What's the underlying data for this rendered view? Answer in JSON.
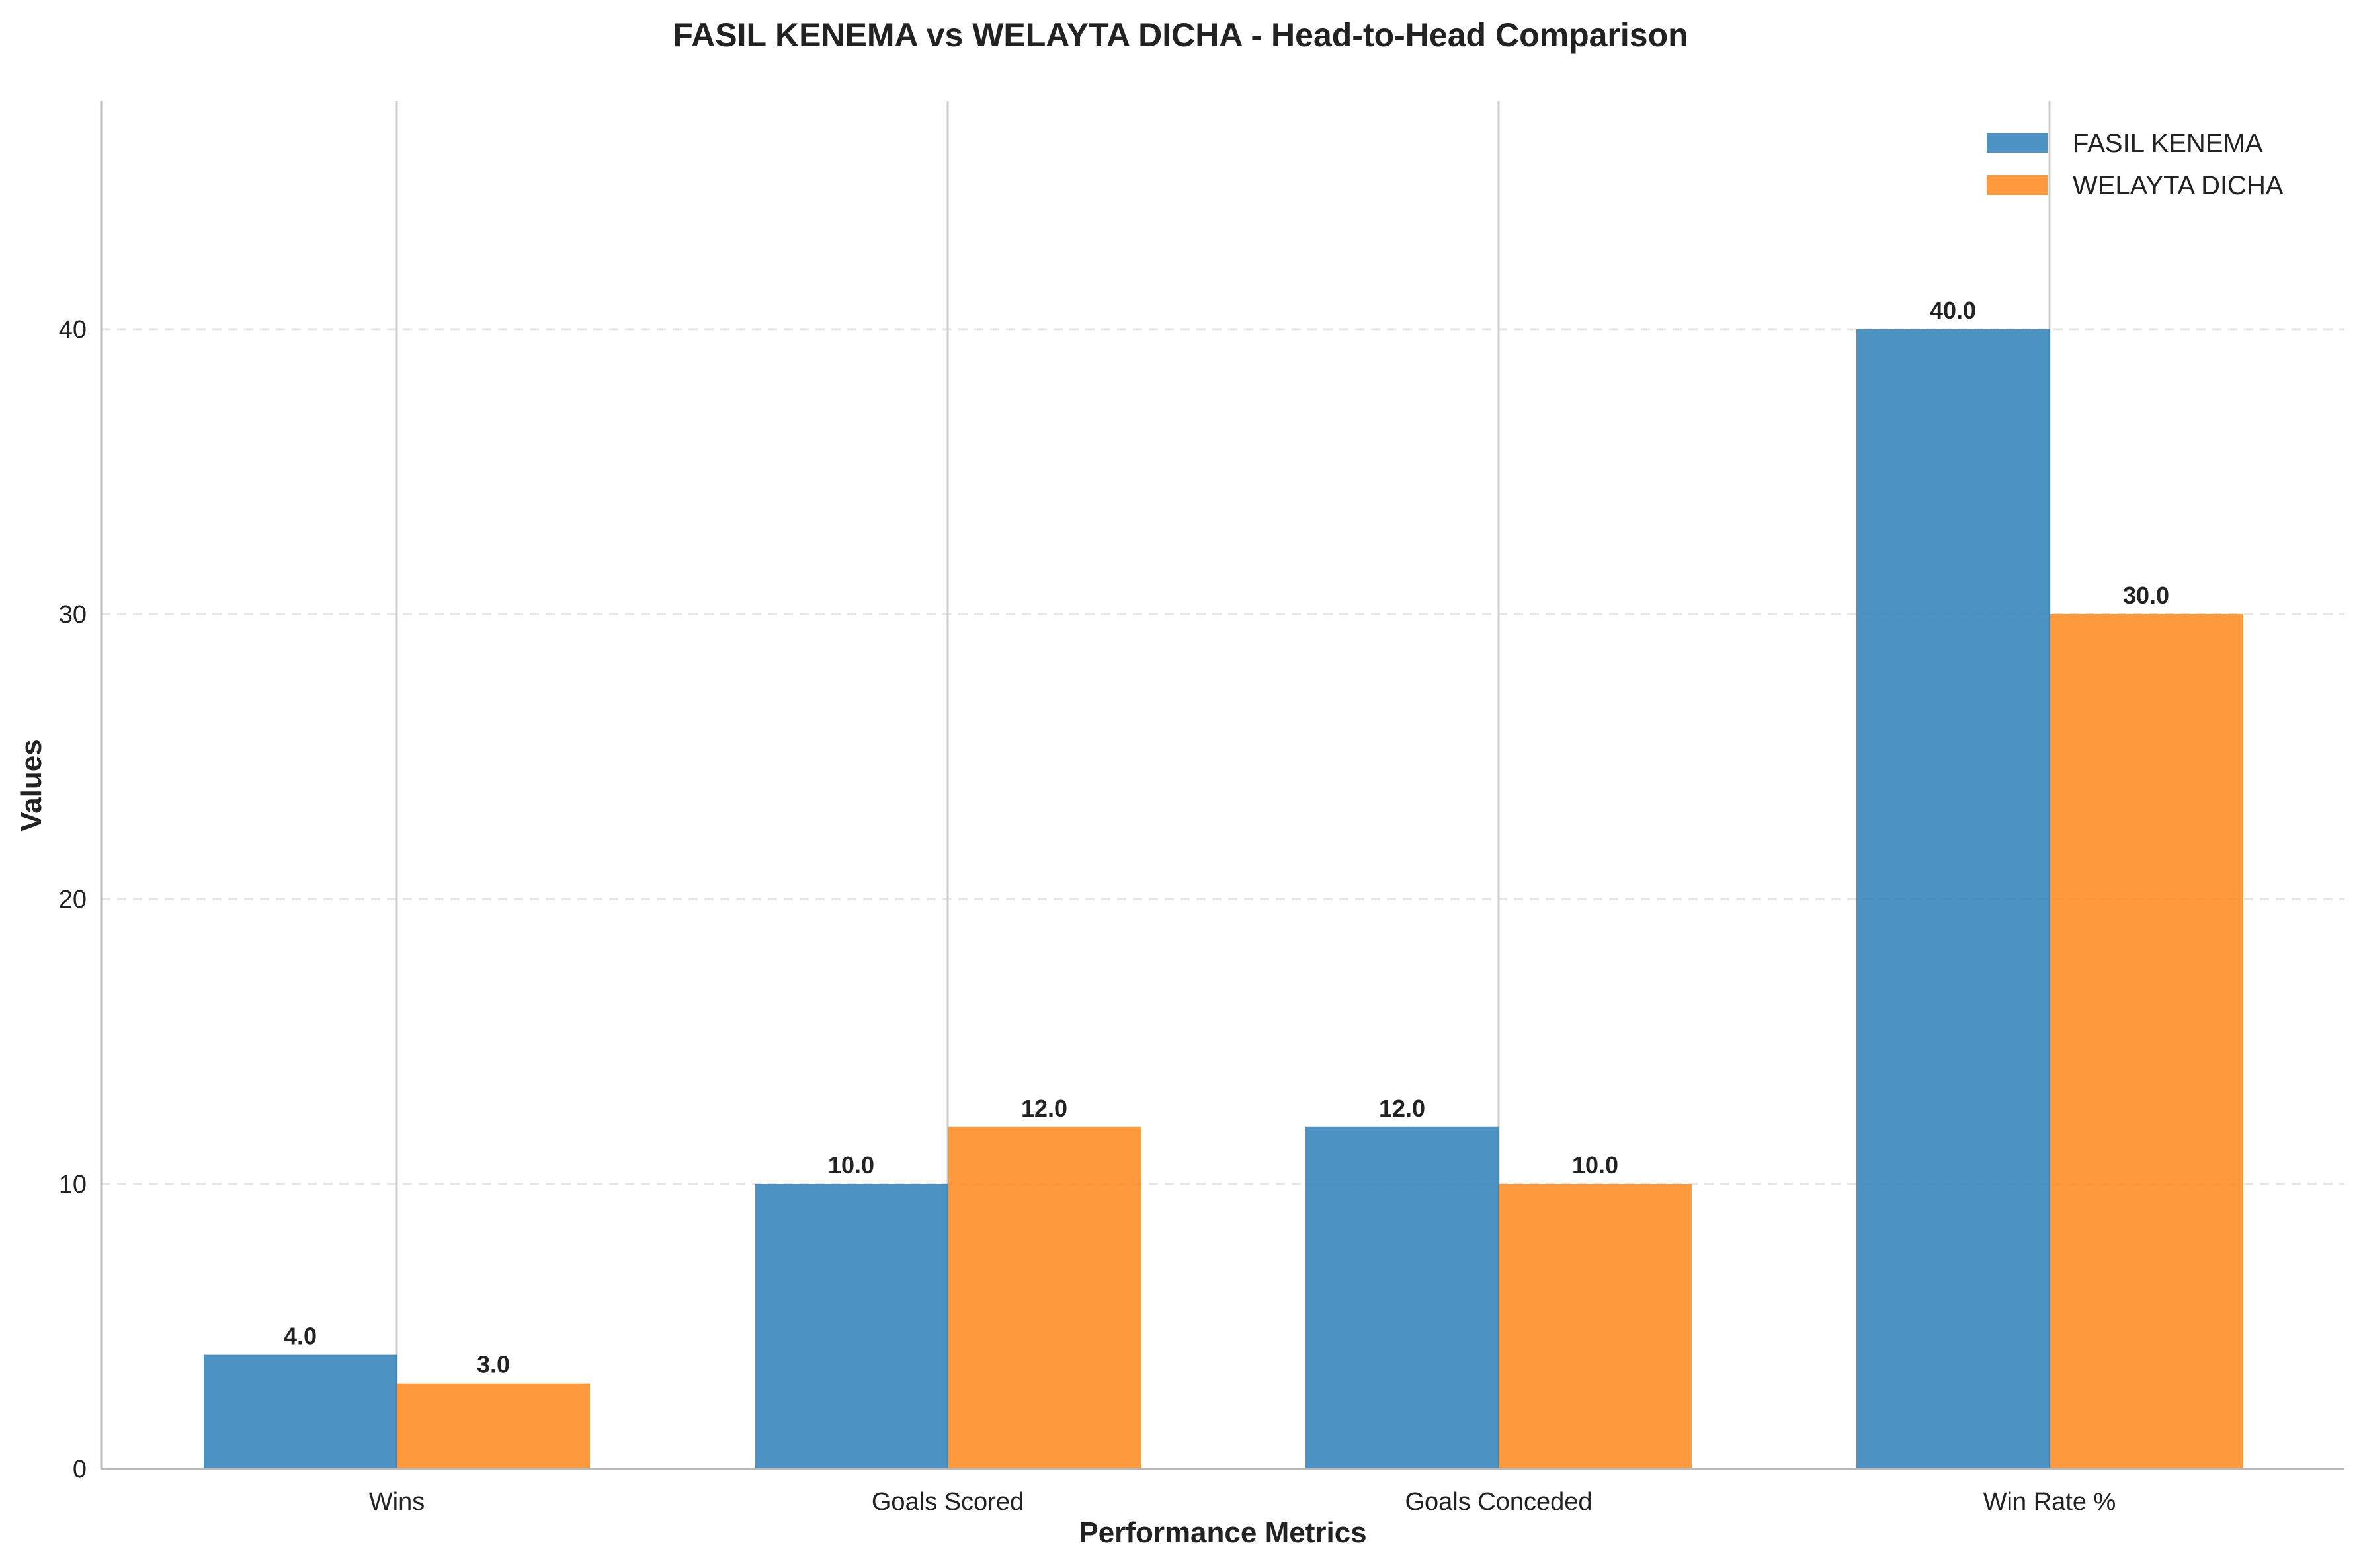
{
  "chart_data": {
    "type": "bar",
    "title": "FASIL KENEMA vs WELAYTA DICHA - Head-to-Head Comparison",
    "xlabel": "Performance Metrics",
    "ylabel": "Values",
    "categories": [
      "Wins",
      "Goals Scored",
      "Goals Conceded",
      "Win Rate %"
    ],
    "series": [
      {
        "name": "FASIL KENEMA",
        "values": [
          4.0,
          10.0,
          12.0,
          40.0
        ],
        "color": "#1f77b4"
      },
      {
        "name": "WELAYTA DICHA",
        "values": [
          3.0,
          12.0,
          10.0,
          30.0
        ],
        "color": "#ff7f0e"
      }
    ],
    "data_labels": [
      [
        "4.0",
        "10.0",
        "12.0",
        "40.0"
      ],
      [
        "3.0",
        "12.0",
        "10.0",
        "30.0"
      ]
    ],
    "yticks": [
      0,
      10,
      20,
      30,
      40
    ],
    "ylim": [
      0,
      48
    ],
    "grid": "y-dashed",
    "legend": "top-right"
  }
}
